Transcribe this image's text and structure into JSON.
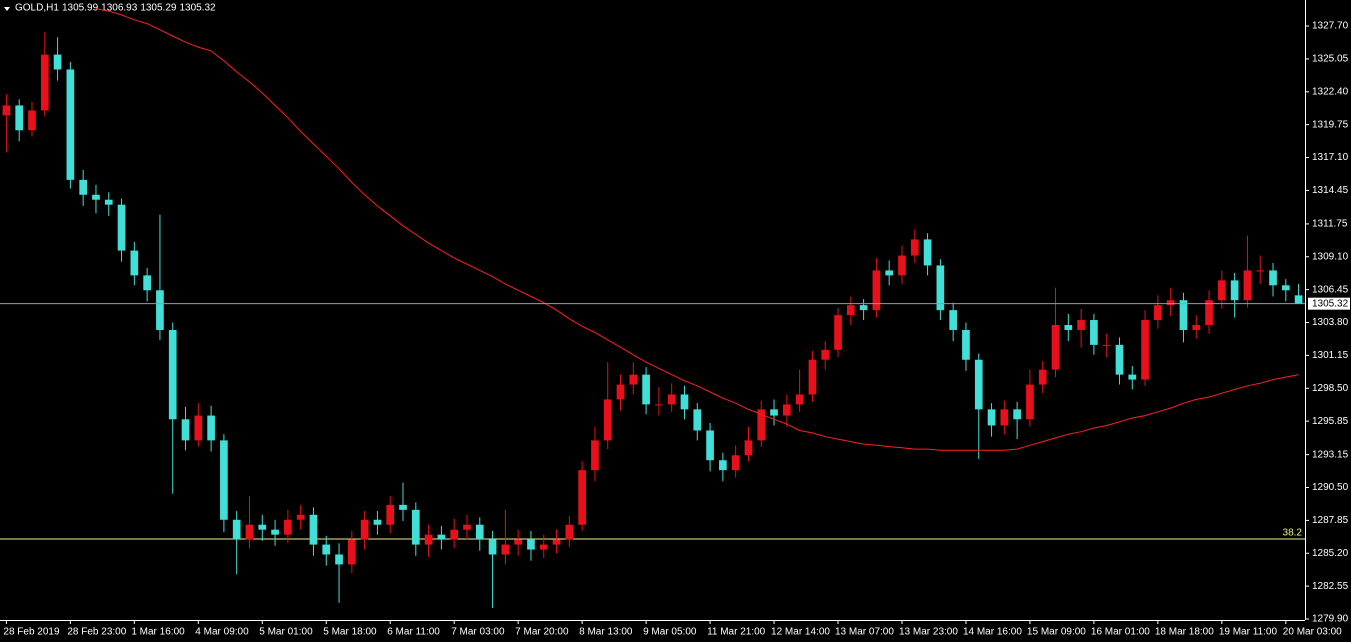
{
  "chart_data": {
    "type": "candlestick",
    "symbol": "GOLD,H1",
    "last_bar": [
      1305.99,
      1306.93,
      1305.29,
      1305.32
    ],
    "background": "#000000",
    "up_color": "#e8101a",
    "down_color": "#40e0d8",
    "axis_color": "#ffffff",
    "categories": [
      "28 Feb 2019",
      null,
      null,
      null,
      null,
      "28 Feb 23:00",
      null,
      null,
      null,
      null,
      "1 Mar 16:00",
      null,
      null,
      null,
      null,
      "4 Mar 09:00",
      null,
      null,
      null,
      null,
      "5 Mar 01:00",
      null,
      null,
      null,
      null,
      "5 Mar 18:00",
      null,
      null,
      null,
      null,
      "6 Mar 11:00",
      null,
      null,
      null,
      null,
      "7 Mar 03:00",
      null,
      null,
      null,
      null,
      "7 Mar 20:00",
      null,
      null,
      null,
      null,
      "8 Mar 13:00",
      null,
      null,
      null,
      null,
      "9 Mar 05:00",
      null,
      null,
      null,
      null,
      "11 Mar 21:00",
      null,
      null,
      null,
      null,
      "12 Mar 14:00",
      null,
      null,
      null,
      null,
      "13 Mar 07:00",
      null,
      null,
      null,
      null,
      "13 Mar 23:00",
      null,
      null,
      null,
      null,
      "14 Mar 16:00",
      null,
      null,
      null,
      null,
      "15 Mar 09:00",
      null,
      null,
      null,
      null,
      "16 Mar 01:00",
      null,
      null,
      null,
      null,
      "18 Mar 18:00",
      null,
      null,
      null,
      null,
      "19 Mar 11:00",
      null,
      null,
      null,
      null,
      "20 Mar 03:00",
      null
    ],
    "open": [
      1320.5,
      1321.3,
      1319.3,
      1320.9,
      1325.4,
      1324.2,
      1315.3,
      1314.1,
      1313.7,
      1313.3,
      1309.6,
      1307.6,
      1306.4,
      1303.2,
      1296.0,
      1294.3,
      1296.3,
      1294.3,
      1287.9,
      1286.3,
      1287.5,
      1287.1,
      1286.7,
      1287.9,
      1288.3,
      1285.9,
      1285.1,
      1284.3,
      1286.3,
      1287.9,
      1287.5,
      1289.1,
      1288.7,
      1285.9,
      1286.7,
      1286.3,
      1287.1,
      1287.5,
      1286.3,
      1285.1,
      1285.9,
      1286.3,
      1285.5,
      1285.9,
      1286.3,
      1287.5,
      1291.9,
      1294.3,
      1297.6,
      1298.8,
      1299.6,
      1297.2,
      1297.2,
      1298.0,
      1296.8,
      1295.1,
      1292.7,
      1291.9,
      1293.1,
      1294.3,
      1296.8,
      1296.3,
      1297.2,
      1298.0,
      1300.8,
      1301.6,
      1304.4,
      1305.2,
      1304.8,
      1308.0,
      1307.6,
      1309.2,
      1310.5,
      1308.4,
      1304.8,
      1303.2,
      1300.8,
      1296.8,
      1295.5,
      1296.8,
      1296.0,
      1298.8,
      1300.0,
      1303.6,
      1303.2,
      1304.0,
      1302.0,
      1302.0,
      1299.6,
      1299.2,
      1304.0,
      1305.2,
      1305.6,
      1303.2,
      1303.6,
      1305.6,
      1307.2,
      1305.6,
      1308.0,
      1308.0,
      1306.8,
      1305.99
    ],
    "high": [
      1322.2,
      1321.8,
      1321.6,
      1327.2,
      1326.8,
      1324.8,
      1316.1,
      1314.9,
      1314.3,
      1313.8,
      1310.3,
      1308.2,
      1312.5,
      1303.8,
      1297.0,
      1297.3,
      1297.1,
      1294.8,
      1288.6,
      1289.8,
      1288.3,
      1287.9,
      1288.7,
      1289.1,
      1288.9,
      1286.6,
      1286.0,
      1287.0,
      1288.6,
      1288.6,
      1289.8,
      1290.9,
      1289.3,
      1287.5,
      1287.4,
      1288.0,
      1288.3,
      1288.1,
      1287.0,
      1288.7,
      1287.1,
      1287.0,
      1286.7,
      1287.1,
      1288.2,
      1292.6,
      1295.4,
      1300.6,
      1299.6,
      1300.6,
      1300.2,
      1298.6,
      1298.9,
      1298.7,
      1297.3,
      1295.7,
      1293.3,
      1293.9,
      1295.4,
      1297.5,
      1297.6,
      1298.0,
      1300.0,
      1301.5,
      1302.3,
      1305.0,
      1305.9,
      1305.7,
      1309.0,
      1308.8,
      1310.0,
      1311.3,
      1311.0,
      1308.9,
      1305.4,
      1303.8,
      1301.3,
      1297.3,
      1297.5,
      1297.4,
      1300.0,
      1300.7,
      1306.6,
      1304.5,
      1304.9,
      1304.5,
      1302.9,
      1302.6,
      1300.3,
      1304.8,
      1306.0,
      1306.6,
      1306.2,
      1304.4,
      1306.4,
      1308.0,
      1307.8,
      1310.8,
      1309.2,
      1308.6,
      1307.3,
      1306.93
    ],
    "low": [
      1317.5,
      1318.4,
      1318.8,
      1320.4,
      1323.3,
      1314.6,
      1313.2,
      1312.6,
      1312.4,
      1308.7,
      1306.8,
      1305.5,
      1302.4,
      1290.0,
      1293.5,
      1293.8,
      1293.4,
      1286.9,
      1283.5,
      1285.6,
      1286.2,
      1285.8,
      1286.0,
      1287.1,
      1285.0,
      1284.2,
      1281.2,
      1283.6,
      1285.5,
      1286.7,
      1286.8,
      1287.8,
      1285.0,
      1284.9,
      1285.5,
      1285.6,
      1286.3,
      1285.4,
      1280.8,
      1284.3,
      1285.0,
      1284.6,
      1284.8,
      1285.2,
      1285.7,
      1287.0,
      1291.0,
      1293.6,
      1296.7,
      1298.0,
      1296.4,
      1296.3,
      1296.6,
      1296.0,
      1294.3,
      1291.8,
      1291.0,
      1291.3,
      1292.6,
      1293.8,
      1295.5,
      1295.4,
      1296.6,
      1297.4,
      1300.0,
      1301.0,
      1303.6,
      1304.0,
      1304.2,
      1306.8,
      1306.9,
      1308.6,
      1307.6,
      1304.0,
      1302.3,
      1299.9,
      1292.8,
      1294.6,
      1294.8,
      1294.4,
      1295.4,
      1298.1,
      1299.4,
      1302.3,
      1301.8,
      1301.2,
      1301.0,
      1298.8,
      1298.4,
      1298.7,
      1303.3,
      1304.3,
      1302.2,
      1302.5,
      1302.9,
      1304.9,
      1304.2,
      1305.0,
      1306.9,
      1305.9,
      1305.5,
      1305.29
    ],
    "close": [
      1321.3,
      1319.3,
      1320.9,
      1325.4,
      1324.2,
      1315.3,
      1314.1,
      1313.7,
      1313.3,
      1309.6,
      1307.6,
      1306.4,
      1303.2,
      1296.0,
      1294.3,
      1296.3,
      1294.3,
      1287.9,
      1286.3,
      1287.5,
      1287.1,
      1286.7,
      1287.9,
      1288.3,
      1285.9,
      1285.1,
      1284.3,
      1286.3,
      1287.9,
      1287.5,
      1289.1,
      1288.7,
      1285.9,
      1286.7,
      1286.3,
      1287.1,
      1287.5,
      1286.3,
      1285.1,
      1285.9,
      1286.3,
      1285.5,
      1285.9,
      1286.3,
      1287.5,
      1291.9,
      1294.3,
      1297.6,
      1298.8,
      1299.6,
      1297.2,
      1297.2,
      1298.0,
      1296.8,
      1295.1,
      1292.7,
      1291.9,
      1293.1,
      1294.3,
      1296.8,
      1296.3,
      1297.2,
      1298.0,
      1300.8,
      1301.6,
      1304.4,
      1305.2,
      1304.8,
      1308.0,
      1307.6,
      1309.2,
      1310.5,
      1308.4,
      1304.8,
      1303.2,
      1300.8,
      1296.8,
      1295.5,
      1296.8,
      1296.0,
      1298.8,
      1300.0,
      1303.6,
      1303.2,
      1304.0,
      1302.0,
      1302.0,
      1299.6,
      1299.2,
      1304.0,
      1305.2,
      1305.6,
      1303.2,
      1303.6,
      1305.6,
      1307.2,
      1305.6,
      1308.0,
      1308.0,
      1306.8,
      1306.4,
      1305.32
    ],
    "moving_average": {
      "color": "#ff2020",
      "values": [
        null,
        null,
        null,
        null,
        null,
        null,
        null,
        1329.1,
        1328.9,
        1328.6,
        1328.2,
        1327.9,
        1327.4,
        1326.9,
        1326.4,
        1326.0,
        1325.7,
        1324.9,
        1324.0,
        1323.2,
        1322.3,
        1321.3,
        1320.3,
        1319.2,
        1318.2,
        1317.2,
        1316.2,
        1315.1,
        1314.1,
        1313.2,
        1312.4,
        1311.6,
        1310.9,
        1310.2,
        1309.6,
        1309.0,
        1308.5,
        1308.0,
        1307.5,
        1306.9,
        1306.4,
        1305.9,
        1305.4,
        1304.8,
        1304.1,
        1303.5,
        1303.0,
        1302.4,
        1301.8,
        1301.2,
        1300.6,
        1300.1,
        1299.6,
        1299.1,
        1298.7,
        1298.2,
        1297.7,
        1297.3,
        1296.8,
        1296.4,
        1296.0,
        1295.6,
        1295.1,
        1294.9,
        1294.6,
        1294.4,
        1294.2,
        1294.0,
        1293.9,
        1293.8,
        1293.7,
        1293.6,
        1293.6,
        1293.5,
        1293.5,
        1293.5,
        1293.5,
        1293.5,
        1293.5,
        1293.6,
        1293.9,
        1294.2,
        1294.5,
        1294.8,
        1295.0,
        1295.3,
        1295.5,
        1295.8,
        1296.1,
        1296.3,
        1296.6,
        1296.9,
        1297.3,
        1297.6,
        1297.8,
        1298.1,
        1298.4,
        1298.7,
        1298.9,
        1299.2,
        1299.4,
        1299.6
      ]
    },
    "price_line_color": "#8ea0b4",
    "fib": {
      "level": 38.2,
      "price": 1286.35,
      "color": "#f0f08c"
    },
    "ylim": [
      1279.82,
      1329.8
    ],
    "yticks": [
      {
        "value": 1327.7,
        "label": "1327.70"
      },
      {
        "value": 1325.05,
        "label": "1325.05"
      },
      {
        "value": 1322.4,
        "label": "1322.40"
      },
      {
        "value": 1319.75,
        "label": "1319.75"
      },
      {
        "value": 1317.1,
        "label": "1317.10"
      },
      {
        "value": 1314.45,
        "label": "1314.45"
      },
      {
        "value": 1311.75,
        "label": "1311.75"
      },
      {
        "value": 1309.1,
        "label": "1309.10"
      },
      {
        "value": 1306.45,
        "label": "1306.45"
      },
      {
        "value": 1303.8,
        "label": "1303.80"
      },
      {
        "value": 1301.15,
        "label": "1301.15"
      },
      {
        "value": 1298.5,
        "label": "1298.50"
      },
      {
        "value": 1295.85,
        "label": "1295.85"
      },
      {
        "value": 1293.15,
        "label": "1293.15"
      },
      {
        "value": 1290.5,
        "label": "1290.50"
      },
      {
        "value": 1287.85,
        "label": "1287.85"
      },
      {
        "value": 1285.2,
        "label": "1285.20"
      },
      {
        "value": 1282.55,
        "label": "1282.55"
      },
      {
        "value": 1279.9,
        "label": "1279.90"
      }
    ]
  }
}
